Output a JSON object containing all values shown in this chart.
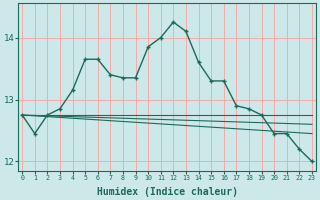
{
  "xlabel": "Humidex (Indice chaleur)",
  "background_color": "#cce8e8",
  "grid_color": "#f5aaaa",
  "line_color": "#1a6b5a",
  "x": [
    0,
    1,
    2,
    3,
    4,
    5,
    6,
    7,
    8,
    9,
    10,
    11,
    12,
    13,
    14,
    15,
    16,
    17,
    18,
    19,
    20,
    21,
    22,
    23
  ],
  "line1": [
    12.75,
    12.45,
    12.75,
    12.85,
    13.15,
    13.65,
    13.65,
    13.4,
    13.35,
    13.35,
    13.85,
    14.0,
    14.25,
    14.1,
    13.6,
    13.3,
    13.3,
    12.9,
    12.85,
    12.75,
    12.45,
    12.45,
    12.2,
    12.0
  ],
  "line2_x": [
    0,
    23
  ],
  "line2_y": [
    12.75,
    12.75
  ],
  "line3_x": [
    0,
    23
  ],
  "line3_y": [
    12.75,
    12.6
  ],
  "line4_x": [
    0,
    23
  ],
  "line4_y": [
    12.75,
    12.45
  ],
  "ylim": [
    11.85,
    14.55
  ],
  "yticks": [
    12,
    13,
    14
  ],
  "xlim": [
    -0.3,
    23.3
  ]
}
